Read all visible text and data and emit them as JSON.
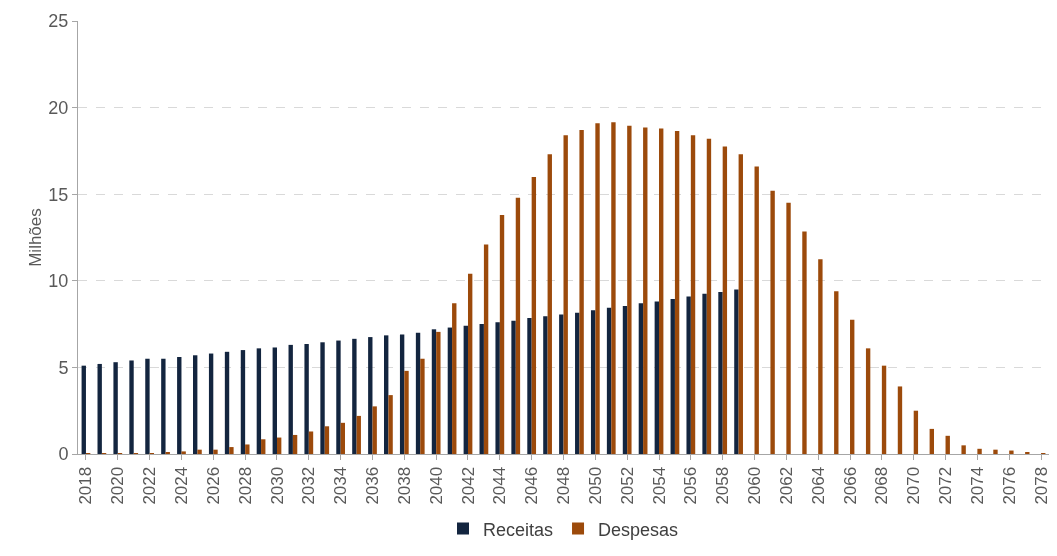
{
  "chart_data": {
    "type": "bar",
    "ylabel": "Milhões",
    "categories": [
      "2018",
      null,
      "2020",
      null,
      "2022",
      null,
      "2024",
      null,
      "2026",
      null,
      "2028",
      null,
      "2030",
      null,
      "2032",
      null,
      "2034",
      null,
      "2036",
      null,
      "2038",
      null,
      "2040",
      null,
      "2042",
      null,
      "2044",
      null,
      "2046",
      null,
      "2048",
      null,
      "2050",
      null,
      "2052",
      null,
      "2054",
      null,
      "2056",
      null,
      "2058",
      null,
      "2060",
      null,
      "2062",
      null,
      "2064",
      null,
      "2066",
      null,
      "2068",
      null,
      "2070",
      null,
      "2072",
      null,
      "2074",
      null,
      "2076",
      null,
      "2078"
    ],
    "series": [
      {
        "name": "Receitas",
        "color": "#13253f",
        "values": [
          5.1,
          5.2,
          5.3,
          5.4,
          5.5,
          5.5,
          5.6,
          5.7,
          5.8,
          5.9,
          6.0,
          6.1,
          6.15,
          6.3,
          6.35,
          6.45,
          6.55,
          6.65,
          6.75,
          6.85,
          6.9,
          7.0,
          7.2,
          7.3,
          7.4,
          7.5,
          7.6,
          7.7,
          7.85,
          7.95,
          8.05,
          8.15,
          8.3,
          8.45,
          8.55,
          8.7,
          8.8,
          8.95,
          9.1,
          9.25,
          9.35,
          9.5,
          null,
          null,
          null,
          null,
          null,
          null,
          null,
          null,
          null,
          null,
          null,
          null,
          null,
          null,
          null,
          null,
          null,
          null,
          null
        ]
      },
      {
        "name": "Despesas",
        "color": "#9c4a0b",
        "values": [
          0.05,
          0.05,
          0.05,
          0.05,
          0.05,
          0.1,
          0.15,
          0.25,
          0.25,
          0.4,
          0.55,
          0.85,
          0.95,
          1.1,
          1.3,
          1.6,
          1.8,
          2.2,
          2.75,
          3.4,
          4.8,
          5.5,
          7.05,
          8.7,
          10.4,
          12.1,
          13.8,
          14.8,
          16.0,
          17.3,
          18.4,
          18.7,
          19.1,
          19.15,
          18.95,
          18.85,
          18.8,
          18.65,
          18.4,
          18.2,
          17.75,
          17.3,
          16.6,
          15.2,
          14.5,
          12.85,
          11.25,
          9.4,
          7.75,
          6.1,
          5.1,
          3.9,
          2.5,
          1.45,
          1.05,
          0.5,
          0.3,
          0.25,
          0.2,
          0.1,
          0.05
        ]
      }
    ],
    "ylim": [
      0,
      25
    ],
    "yticks": [
      0,
      5,
      10,
      15,
      20,
      25
    ],
    "grid": "y",
    "legend": "bottom"
  }
}
